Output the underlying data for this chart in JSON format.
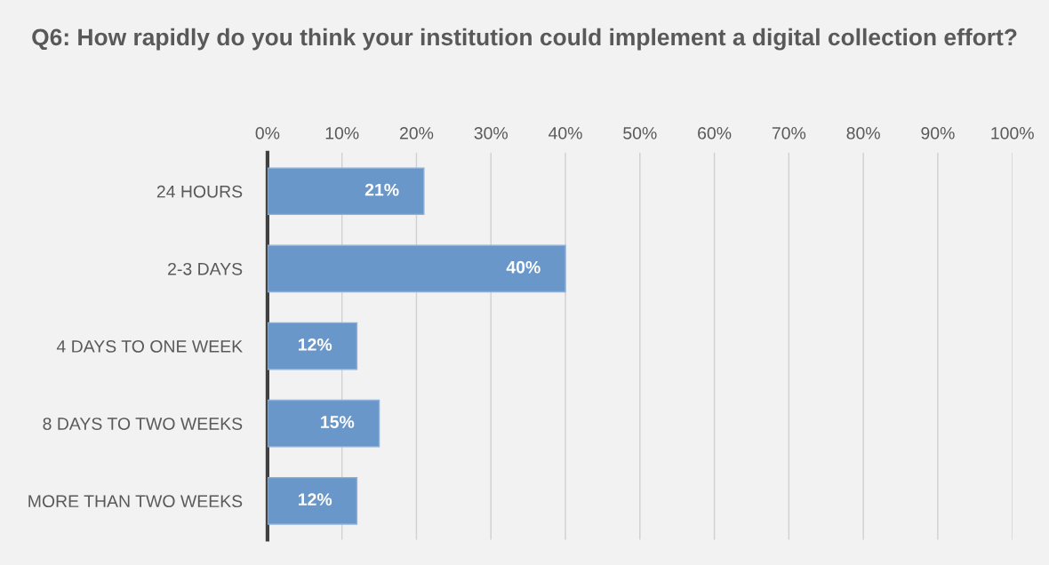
{
  "chart_data": {
    "type": "bar",
    "orientation": "horizontal",
    "title": "Q6: How rapidly do you think your institution could implement a digital collection effort?",
    "categories": [
      "24 HOURS",
      "2-3 DAYS",
      "4 DAYS TO ONE WEEK",
      "8 DAYS TO TWO WEEKS",
      "MORE THAN TWO WEEKS"
    ],
    "values": [
      21,
      40,
      12,
      15,
      12
    ],
    "value_labels": [
      "21%",
      "40%",
      "12%",
      "15%",
      "12%"
    ],
    "color": "#6a97c9",
    "xlim": [
      0,
      100
    ],
    "xticks": [
      {
        "value": 0,
        "label": "0%"
      },
      {
        "value": 10,
        "label": "10%"
      },
      {
        "value": 20,
        "label": "20%"
      },
      {
        "value": 30,
        "label": "30%"
      },
      {
        "value": 40,
        "label": "40%"
      },
      {
        "value": 50,
        "label": "50%"
      },
      {
        "value": 60,
        "label": "60%"
      },
      {
        "value": 70,
        "label": "70%"
      },
      {
        "value": 80,
        "label": "80%"
      },
      {
        "value": 90,
        "label": "90%"
      },
      {
        "value": 100,
        "label": "100%"
      }
    ],
    "grid": "x"
  }
}
